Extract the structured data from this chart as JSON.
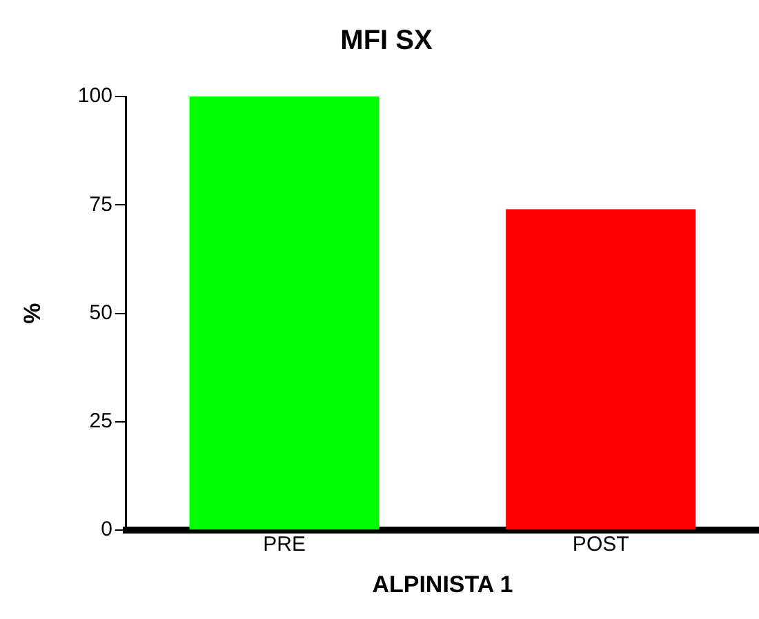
{
  "chart_data": {
    "type": "bar",
    "title": "MFI SX",
    "xlabel": "ALPINISTA 1",
    "ylabel": "%",
    "categories": [
      "PRE",
      "POST"
    ],
    "values": [
      100,
      74
    ],
    "colors": [
      "#00ff00",
      "#ff0000"
    ],
    "ylim": [
      0,
      100
    ],
    "yticks": [
      0,
      25,
      50,
      75,
      100
    ],
    "grid": false,
    "legend": false
  }
}
